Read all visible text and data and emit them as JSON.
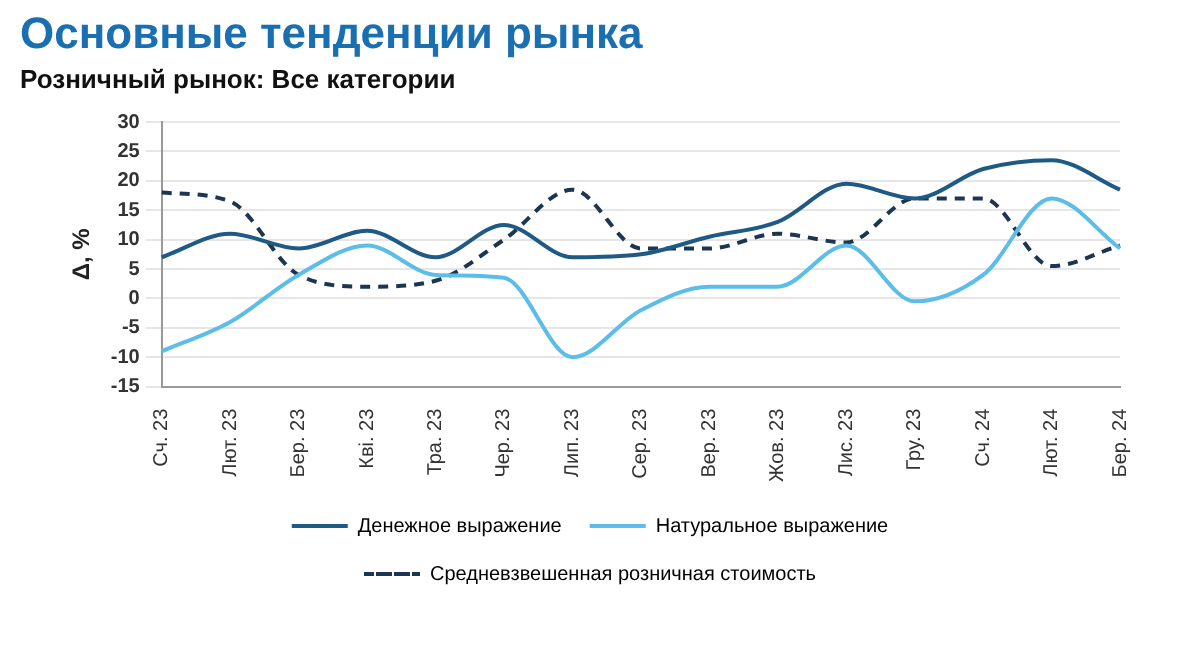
{
  "chart_data": {
    "type": "line",
    "title": "Основные тенденции рынка",
    "subtitle": "Розничный рынок: Все категории",
    "ylabel": "Δ, %",
    "categories": [
      "Сч. 23",
      "Лют. 23",
      "Бер. 23",
      "Кві. 23",
      "Тра. 23",
      "Чер. 23",
      "Лип. 23",
      "Сер. 23",
      "Вер. 23",
      "Жов. 23",
      "Лис. 23",
      "Гру. 23",
      "Сч. 24",
      "Лют. 24",
      "Бер. 24"
    ],
    "series": [
      {
        "name": "Денежное выражение",
        "color": "#1f5a85",
        "line_style": "solid",
        "values": [
          7,
          11,
          8.5,
          11.5,
          7,
          12.5,
          7,
          7.5,
          10.5,
          13,
          19.5,
          17,
          22,
          23.5,
          18.5
        ]
      },
      {
        "name": "Натуральное выражение",
        "color": "#5bbde8",
        "line_style": "solid",
        "values": [
          -9,
          -4,
          4,
          9,
          4,
          3.5,
          -10,
          -2,
          2,
          2,
          9,
          -0.5,
          4,
          17,
          8.5
        ]
      },
      {
        "name": "Средневзвешенная розничная стоимость",
        "color": "#1c3550",
        "line_style": "dashed",
        "values": [
          18,
          16.5,
          4,
          2,
          3,
          10,
          18.5,
          8.5,
          8.5,
          11,
          9.5,
          17,
          17,
          5.5,
          9
        ]
      }
    ],
    "ylim": [
      -15,
      30
    ],
    "yticks": [
      -15,
      -10,
      -5,
      0,
      5,
      10,
      15,
      20,
      25,
      30
    ],
    "grid": "y",
    "legend": "bottom",
    "marker": "none"
  }
}
